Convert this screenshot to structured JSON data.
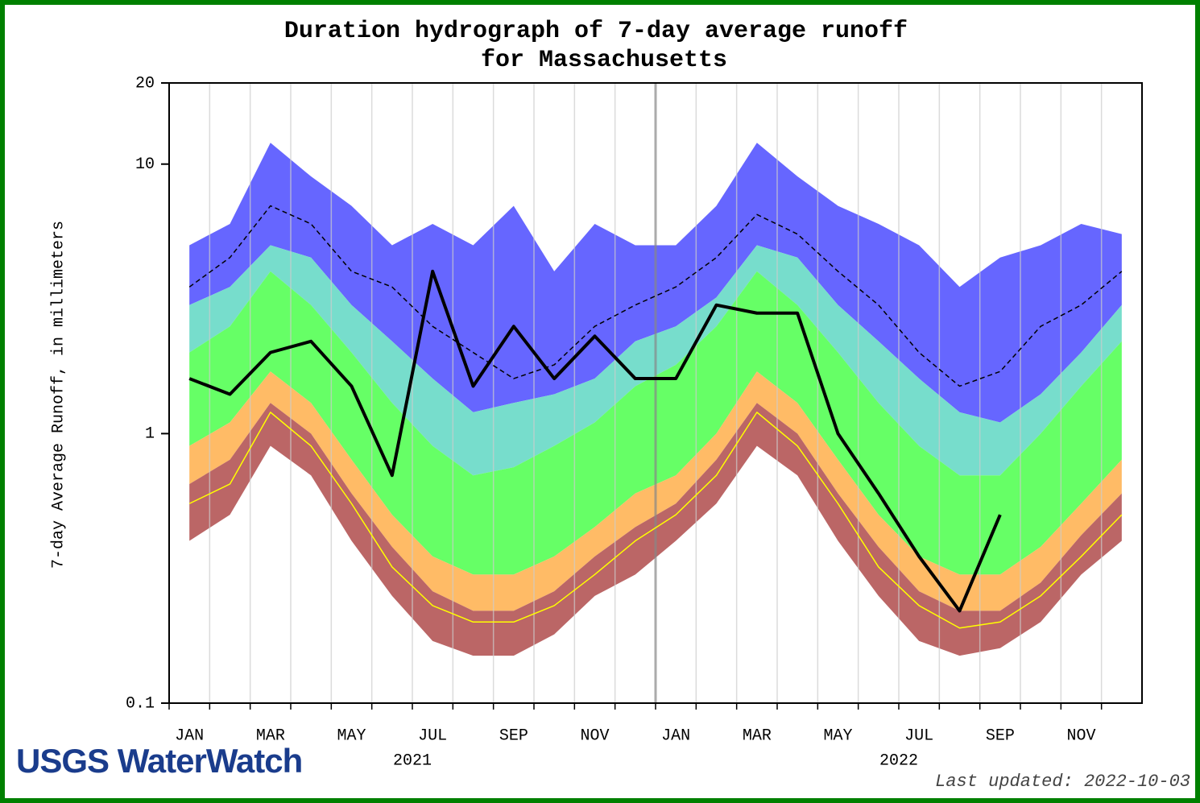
{
  "chart_data": {
    "type": "hydrograph",
    "title": "Duration hydrograph of 7-day average runoff",
    "subtitle": "for Massachusetts",
    "y_label": "7-day Average Runoff, in millimeters",
    "categories": [
      "JAN",
      null,
      "MAR",
      null,
      "MAY",
      null,
      "JUL",
      null,
      "SEP",
      null,
      "NOV",
      null,
      "JAN",
      null,
      "MAR",
      null,
      "MAY",
      null,
      "JUL",
      null,
      "SEP",
      null,
      "NOV",
      null
    ],
    "years": [
      "2021",
      "2022"
    ],
    "log_y": true,
    "ylim": [
      0.1,
      20
    ],
    "yticks": [
      0.1,
      1,
      10,
      20
    ],
    "series": [
      {
        "style": "band",
        "color": "#6666ff",
        "values": [
          5,
          6,
          12,
          9,
          7,
          5,
          6,
          5,
          7,
          4,
          6,
          5,
          5,
          7,
          12,
          9,
          7,
          6,
          5,
          3.5,
          4.5,
          5,
          6,
          5.5
        ]
      },
      {
        "style": "band",
        "color": "#77ddcc",
        "values": [
          3,
          3.5,
          5,
          4.5,
          3,
          2.2,
          1.6,
          1.2,
          1.3,
          1.4,
          1.6,
          2.2,
          2.5,
          3.2,
          5,
          4.5,
          3,
          2.2,
          1.6,
          1.2,
          1.1,
          1.4,
          2,
          3
        ]
      },
      {
        "style": "band",
        "color": "#66ff66",
        "values": [
          2,
          2.5,
          4,
          3,
          2,
          1.3,
          0.9,
          0.7,
          0.75,
          0.9,
          1.1,
          1.5,
          1.8,
          2.5,
          4,
          3,
          2,
          1.3,
          0.9,
          0.7,
          0.7,
          1,
          1.5,
          2.2
        ]
      },
      {
        "style": "band",
        "color": "#ffbb66",
        "values": [
          0.9,
          1.1,
          1.7,
          1.3,
          0.8,
          0.5,
          0.35,
          0.3,
          0.3,
          0.35,
          0.45,
          0.6,
          0.7,
          1.0,
          1.7,
          1.3,
          0.8,
          0.5,
          0.35,
          0.3,
          0.3,
          0.38,
          0.55,
          0.8
        ]
      },
      {
        "style": "band",
        "color": "#bb6666",
        "values": [
          0.65,
          0.8,
          1.3,
          1.0,
          0.6,
          0.38,
          0.26,
          0.22,
          0.22,
          0.26,
          0.35,
          0.45,
          0.55,
          0.8,
          1.3,
          1.0,
          0.6,
          0.38,
          0.26,
          0.22,
          0.22,
          0.28,
          0.42,
          0.6
        ]
      },
      {
        "style": "band",
        "color": "#bb6666",
        "values": [
          0.4,
          0.5,
          0.9,
          0.7,
          0.4,
          0.25,
          0.17,
          0.15,
          0.15,
          0.18,
          0.25,
          0.3,
          0.4,
          0.55,
          0.9,
          0.7,
          0.4,
          0.25,
          0.17,
          0.15,
          0.16,
          0.2,
          0.3,
          0.4
        ]
      },
      {
        "style": "dashed",
        "color": "#000000",
        "values": [
          3.5,
          4.5,
          7,
          6,
          4,
          3.5,
          2.5,
          2,
          1.6,
          1.8,
          2.5,
          3,
          3.5,
          4.5,
          6.5,
          5.5,
          4,
          3,
          2,
          1.5,
          1.7,
          2.5,
          3,
          4
        ]
      },
      {
        "style": "line",
        "color": "#ffff00",
        "width": 1.5,
        "values": [
          0.55,
          0.65,
          1.2,
          0.9,
          0.55,
          0.32,
          0.23,
          0.2,
          0.2,
          0.23,
          0.3,
          0.4,
          0.5,
          0.7,
          1.2,
          0.9,
          0.55,
          0.32,
          0.23,
          0.19,
          0.2,
          0.25,
          0.35,
          0.5
        ]
      },
      {
        "style": "line",
        "color": "#000000",
        "width": 4,
        "values": [
          1.6,
          1.4,
          2.0,
          2.2,
          1.5,
          0.7,
          4.0,
          1.5,
          2.5,
          1.6,
          2.3,
          1.6,
          1.6,
          3.0,
          2.8,
          2.8,
          1.0,
          0.6,
          0.35,
          0.22,
          0.5,
          null,
          null,
          null
        ]
      }
    ],
    "grid": true,
    "logo": "USGS WaterWatch",
    "footnote": "Last updated: 2022-10-03"
  }
}
